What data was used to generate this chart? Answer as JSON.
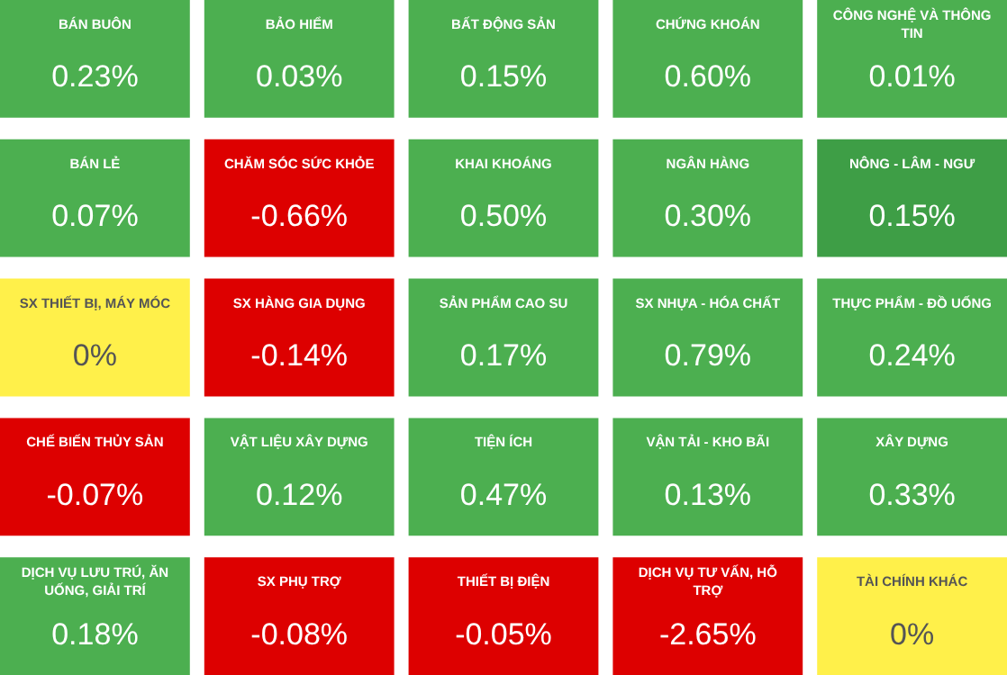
{
  "chart_data": {
    "type": "other",
    "categories": [
      "BÁN BUÔN",
      "BẢO HIỂM",
      "BẤT ĐỘNG SẢN",
      "CHỨNG KHOÁN",
      "CÔNG NGHỆ VÀ THÔNG TIN",
      "BÁN LẺ",
      "CHĂM SÓC SỨC KHỎE",
      "KHAI KHOÁNG",
      "NGÂN HÀNG",
      "NÔNG - LÂM - NGƯ",
      "SX THIẾT BỊ, MÁY MÓC",
      "SX HÀNG GIA DỤNG",
      "SẢN PHẨM CAO SU",
      "SX NHỰA - HÓA CHẤT",
      "THỰC PHẨM - ĐỒ UỐNG",
      "CHẾ BIẾN THỦY SẢN",
      "VẬT LIỆU XÂY DỰNG",
      "TIỆN ÍCH",
      "VẬN TẢI - KHO BÃI",
      "XÂY DỰNG",
      "DỊCH VỤ LƯU TRÚ, ĂN UỐNG, GIẢI TRÍ",
      "SX PHỤ TRỢ",
      "THIẾT BỊ ĐIỆN",
      "DỊCH VỤ TƯ VẤN, HỖ TRỢ",
      "TÀI CHÍNH KHÁC"
    ],
    "values": [
      0.23,
      0.03,
      0.15,
      0.6,
      0.01,
      0.07,
      -0.66,
      0.5,
      0.3,
      0.15,
      0,
      -0.14,
      0.17,
      0.79,
      0.24,
      -0.07,
      0.12,
      0.47,
      0.13,
      0.33,
      0.18,
      -0.08,
      -0.05,
      -2.65,
      0
    ],
    "value_labels": [
      "0.23%",
      "0.03%",
      "0.15%",
      "0.60%",
      "0.01%",
      "0.07%",
      "-0.66%",
      "0.50%",
      "0.30%",
      "0.15%",
      "0%",
      "-0.14%",
      "0.17%",
      "0.79%",
      "0.24%",
      "-0.07%",
      "0.12%",
      "0.47%",
      "0.13%",
      "0.33%",
      "0.18%",
      "-0.08%",
      "-0.05%",
      "-2.65%",
      "0%"
    ],
    "colors": [
      "#4caf50",
      "#4caf50",
      "#4caf50",
      "#4caf50",
      "#4caf50",
      "#4caf50",
      "#dd0000",
      "#4caf50",
      "#4caf50",
      "#3e9e46",
      "#fff04a",
      "#dd0000",
      "#4caf50",
      "#4caf50",
      "#4caf50",
      "#dd0000",
      "#4caf50",
      "#4caf50",
      "#4caf50",
      "#4caf50",
      "#4caf50",
      "#dd0000",
      "#dd0000",
      "#dd0000",
      "#fff04a"
    ]
  }
}
